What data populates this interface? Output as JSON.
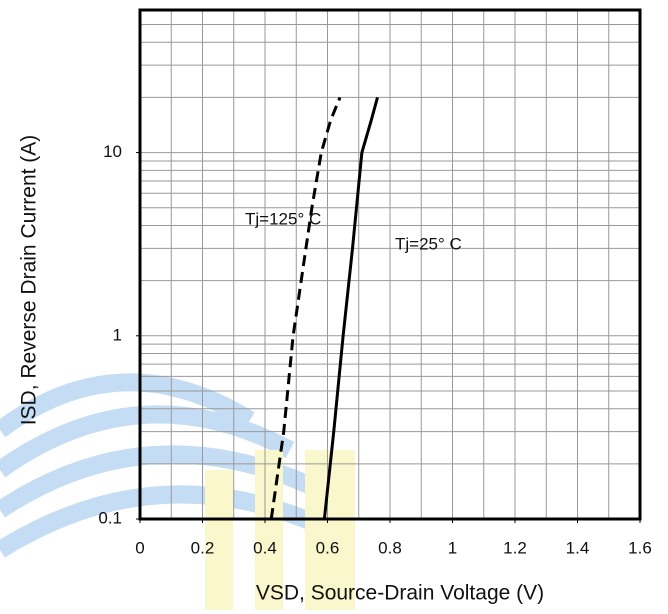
{
  "chart_data": {
    "type": "line",
    "x_label": "VSD, Source-Drain Voltage (V)",
    "y_label": "ISD, Reverse Drain Current (A)",
    "xlim": [
      0,
      1.6
    ],
    "xticks": [
      0,
      0.2,
      0.4,
      0.6,
      0.8,
      1,
      1.2,
      1.4,
      1.6
    ],
    "x_grid": [
      0.1,
      0.2,
      0.3,
      0.4,
      0.5,
      0.6,
      0.7,
      0.8,
      0.9,
      1,
      1.1,
      1.2,
      1.3,
      1.4,
      1.5
    ],
    "ylim": [
      0.1,
      60
    ],
    "yticks": [
      0.1,
      1,
      10
    ],
    "log_y": true,
    "y_grid": [
      0.2,
      0.3,
      0.4,
      0.5,
      0.6,
      0.7,
      0.8,
      0.9,
      1,
      2,
      3,
      4,
      5,
      6,
      7,
      8,
      9,
      10,
      20,
      30,
      40,
      50
    ],
    "grid": true,
    "series": [
      {
        "name": "Tj=125° C",
        "color": "#000000",
        "dash": true,
        "x": [
          0.42,
          0.46,
          0.49,
          0.55,
          0.58,
          0.61,
          0.64
        ],
        "values": [
          0.1,
          0.3,
          1,
          5,
          10,
          15,
          20
        ]
      },
      {
        "name": "Tj=25° C",
        "color": "#000000",
        "dash": false,
        "x": [
          0.59,
          0.62,
          0.65,
          0.68,
          0.71,
          0.74,
          0.76
        ],
        "values": [
          0.1,
          0.3,
          1,
          3,
          10,
          15,
          20
        ]
      }
    ]
  }
}
